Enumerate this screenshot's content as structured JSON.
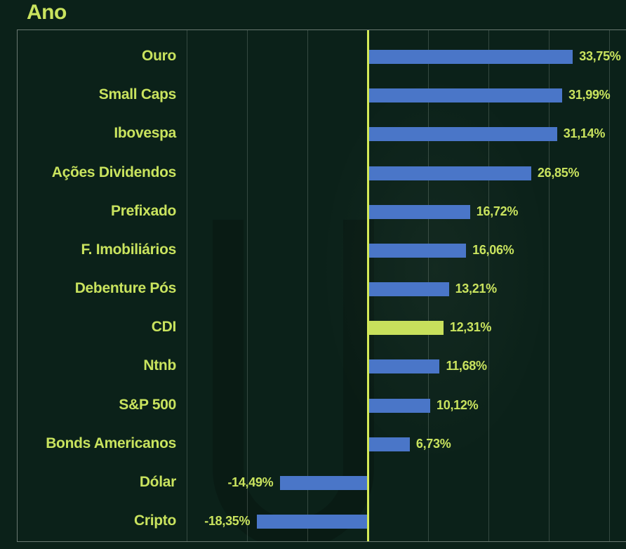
{
  "title": "Ano",
  "chart_data": {
    "type": "bar",
    "orientation": "horizontal",
    "title": "Ano",
    "categories": [
      "Ouro",
      "Small Caps",
      "Ibovespa",
      "Ações Dividendos",
      "Prefixado",
      "F. Imobiliários",
      "Debenture Pós",
      "CDI",
      "Ntnb",
      "S&P 500",
      "Bonds Americanos",
      "Dólar",
      "Cripto"
    ],
    "values": [
      33.75,
      31.99,
      31.14,
      26.85,
      16.72,
      16.06,
      13.21,
      12.31,
      11.68,
      10.12,
      6.73,
      -14.49,
      -18.35
    ],
    "value_labels": [
      "33,75%",
      "31,99%",
      "31,14%",
      "26,85%",
      "16,72%",
      "16,06%",
      "13,21%",
      "12,31%",
      "11,68%",
      "10,12%",
      "6,73%",
      "-14,49%",
      "-18,35%"
    ],
    "highlight_index": 7,
    "xlabel": "",
    "ylabel": "",
    "xlim": [
      -33,
      43
    ],
    "gridlines_pct": [
      -30,
      -20,
      -10,
      10,
      20,
      30,
      40
    ],
    "zero_line": true,
    "grid": true,
    "legend": null,
    "colors": {
      "background": "#0b2119",
      "accent_green": "#c9e35e",
      "bar_blue": "#4a76c8",
      "bar_highlight": "#c8e05c",
      "zero_line": "#d5eb58",
      "frame_border": "#b9c3bc",
      "gridline": "#4d5850"
    }
  }
}
